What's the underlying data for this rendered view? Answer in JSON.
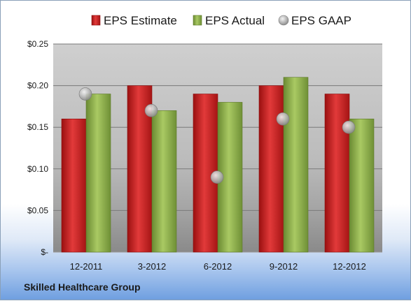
{
  "chart_data": {
    "type": "bar",
    "categories": [
      "12-2011",
      "3-2012",
      "6-2012",
      "9-2012",
      "12-2012"
    ],
    "series": [
      {
        "name": "EPS Estimate",
        "kind": "bar",
        "color": "#c81e1e",
        "values": [
          0.16,
          0.2,
          0.19,
          0.2,
          0.19
        ]
      },
      {
        "name": "EPS Actual",
        "kind": "bar",
        "color": "#8cb04a",
        "values": [
          0.19,
          0.17,
          0.18,
          0.21,
          0.16
        ]
      },
      {
        "name": "EPS GAAP",
        "kind": "marker",
        "color": "#b8b8b8",
        "values": [
          0.19,
          0.17,
          0.09,
          0.16,
          0.15
        ]
      }
    ],
    "ylim": [
      0,
      0.25
    ],
    "yticks": [
      0,
      0.05,
      0.1,
      0.15,
      0.2,
      0.25
    ],
    "ytick_labels": [
      "$-",
      "$0.05",
      "$0.10",
      "$0.15",
      "$0.20",
      "$0.25"
    ],
    "grid": true,
    "legend_position": "top"
  },
  "footer": {
    "company": "Skilled Healthcare Group"
  }
}
